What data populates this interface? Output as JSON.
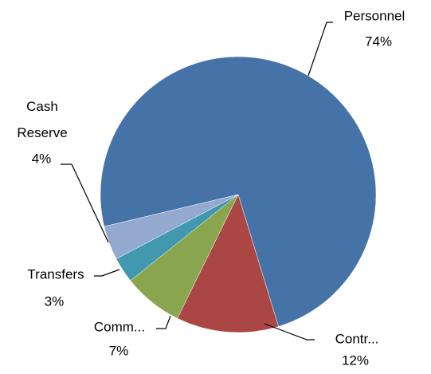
{
  "chart_data": {
    "type": "pie",
    "categories": [
      "Personnel",
      "Contr...",
      "Comm...",
      "Transfers",
      "Cash Reserve"
    ],
    "values": [
      74,
      12,
      7,
      3,
      4
    ],
    "value_labels": [
      "74%",
      "12%",
      "7%",
      "3%",
      "4%"
    ],
    "colors": [
      "#4572a7",
      "#aa4643",
      "#89a54e",
      "#4198af",
      "#93a9cf"
    ],
    "start_angle": 256.6
  }
}
